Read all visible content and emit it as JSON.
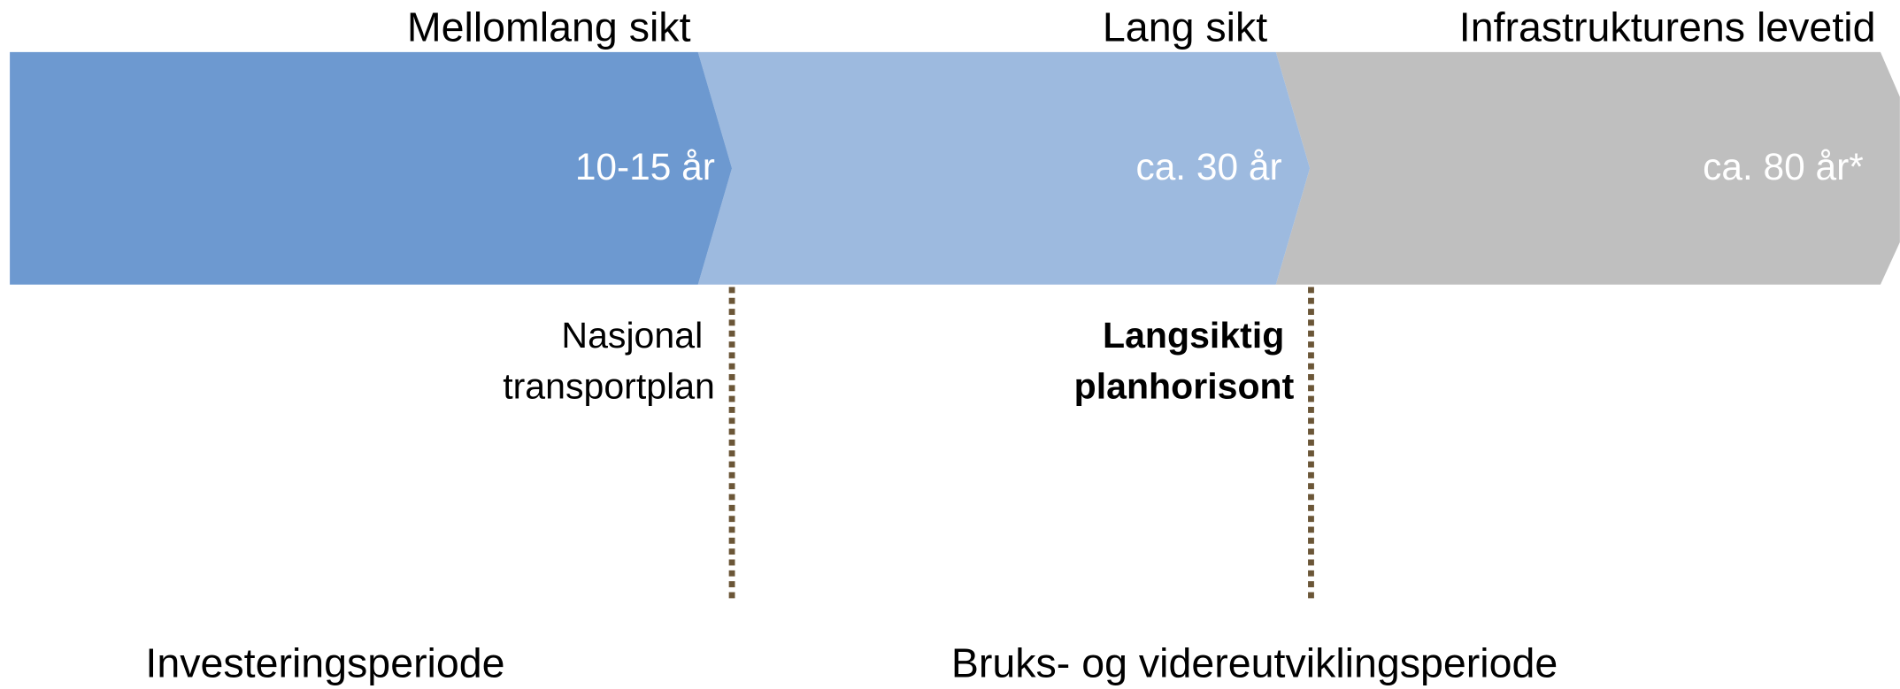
{
  "phases": [
    {
      "title": "Mellomlang sikt",
      "duration": "10-15 år"
    },
    {
      "title": "Lang sikt",
      "duration": "ca. 30 år"
    },
    {
      "title": "Infrastrukturens levetid",
      "duration": "ca. 80 år*"
    }
  ],
  "markers": [
    {
      "lines": [
        "Nasjonal",
        "transportplan"
      ]
    },
    {
      "lines": [
        "Langsiktig",
        "planhorisont"
      ]
    }
  ],
  "periods": [
    "Investeringsperiode",
    "Bruks- og videreutviklingsperiode"
  ]
}
